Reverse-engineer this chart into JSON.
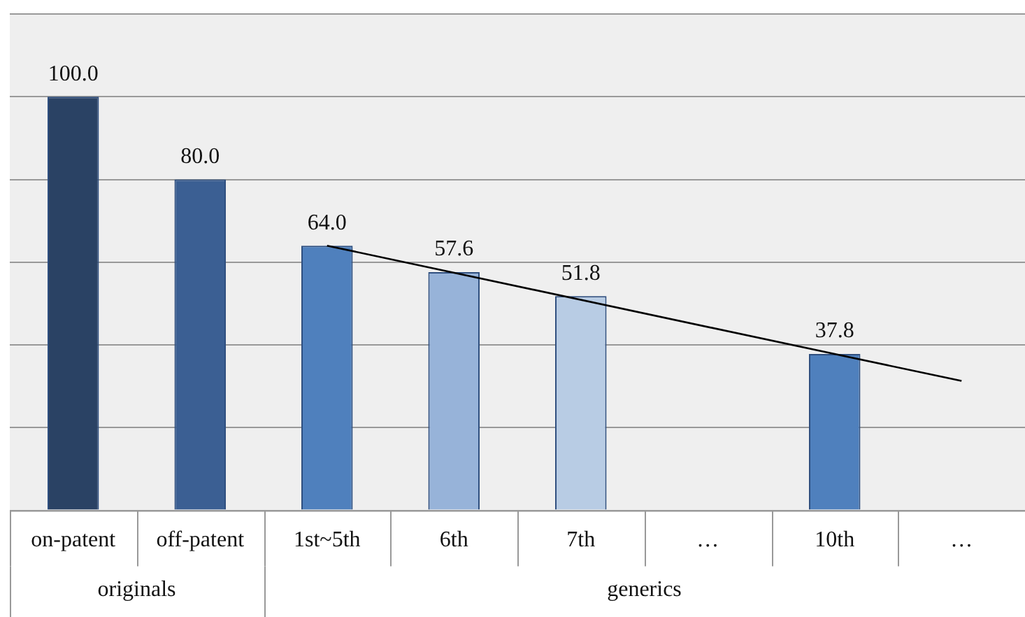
{
  "chart_data": {
    "type": "bar",
    "categories": [
      "on-patent",
      "off-patent",
      "1st~5th",
      "6th",
      "7th",
      "…",
      "10th",
      "…"
    ],
    "series": [
      {
        "colors": [
          "#2a4264",
          "#3b5f93",
          "#4f80bd",
          "#97b3d9",
          "#b8cce4",
          null,
          "#4f80bd",
          null
        ],
        "values": [
          100,
          80,
          64,
          57.6,
          51.8,
          null,
          37.8,
          null
        ],
        "value_labels": [
          "100.0",
          "80.0",
          "64.0",
          "57.6",
          "51.8",
          null,
          "37.8",
          null
        ]
      },
      {
        "type": "line",
        "color": "#000000",
        "values": [
          null,
          null,
          64,
          null,
          null,
          null,
          37.8,
          31.3
        ]
      }
    ],
    "ylim": [
      0,
      120
    ],
    "yticks": [
      0,
      20,
      40,
      60,
      80,
      100,
      120
    ],
    "grid": "y",
    "tick_labels": "x",
    "legend": false,
    "marker": "none",
    "annotations": [
      "originals",
      "generics"
    ]
  }
}
